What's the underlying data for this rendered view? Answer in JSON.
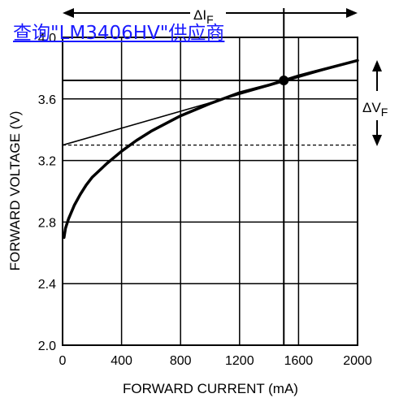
{
  "overlay_link": "查询\"LM3406HV\"供应商",
  "colors": {
    "curve": "#000000",
    "grid": "#000000",
    "link": "#1a1aff"
  },
  "chart_data": {
    "type": "line",
    "title": "",
    "xlabel": "FORWARD CURRENT (mA)",
    "ylabel": "FORWARD VOLTAGE (V)",
    "xlim": [
      0,
      2000
    ],
    "ylim": [
      2.0,
      4.0
    ],
    "x_ticks": [
      0,
      400,
      800,
      1200,
      1600,
      2000
    ],
    "y_ticks": [
      2.0,
      2.4,
      2.8,
      3.2,
      3.6,
      4.0
    ],
    "x_tick_labels": [
      "0",
      "400",
      "800",
      "1200",
      "1600",
      "2000"
    ],
    "y_tick_labels": [
      "2.0",
      "2.4",
      "2.8",
      "3.2",
      "3.6",
      "4.0"
    ],
    "grid": true,
    "series": [
      {
        "role": "iv-curve",
        "x": [
          10,
          20,
          40,
          80,
          120,
          160,
          200,
          300,
          400,
          500,
          600,
          800,
          1000,
          1200,
          1400,
          1500,
          1600,
          1800,
          2000
        ],
        "y": [
          2.7,
          2.76,
          2.82,
          2.91,
          2.98,
          3.04,
          3.09,
          3.18,
          3.26,
          3.33,
          3.39,
          3.49,
          3.57,
          3.64,
          3.69,
          3.72,
          3.75,
          3.8,
          3.85
        ]
      },
      {
        "role": "tangent-line",
        "x": [
          0,
          2000
        ],
        "y": [
          3.3,
          3.85
        ]
      }
    ],
    "reference_lines": {
      "dashed_y": 3.3,
      "solid_y": 3.72,
      "solid_x": 1500
    },
    "operating_point": {
      "x": 1500,
      "y": 3.72
    },
    "annotations": {
      "delta_if": {
        "symbol": "ΔI",
        "subscript": "F"
      },
      "delta_vf": {
        "symbol": "ΔV",
        "subscript": "F"
      }
    }
  }
}
